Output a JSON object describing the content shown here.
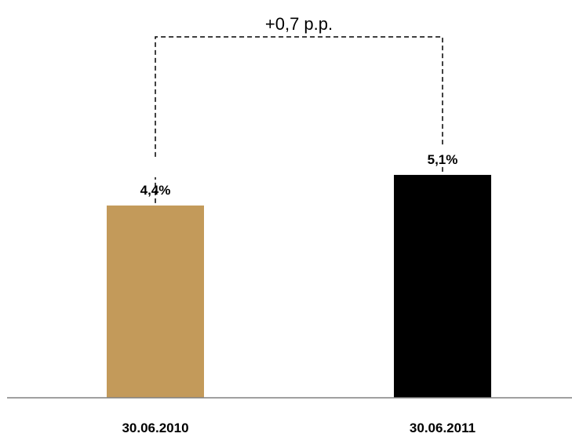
{
  "chart_data": {
    "type": "bar",
    "categories": [
      "30.06.2010",
      "30.06.2011"
    ],
    "values": [
      4.4,
      5.1
    ],
    "value_labels": [
      "4,4%",
      "5,1%"
    ],
    "colors": [
      "#c39a5a",
      "#000000"
    ],
    "annotation": "+0,7 p.p.",
    "grid": false,
    "title": "",
    "xlabel": "",
    "ylabel": ""
  }
}
